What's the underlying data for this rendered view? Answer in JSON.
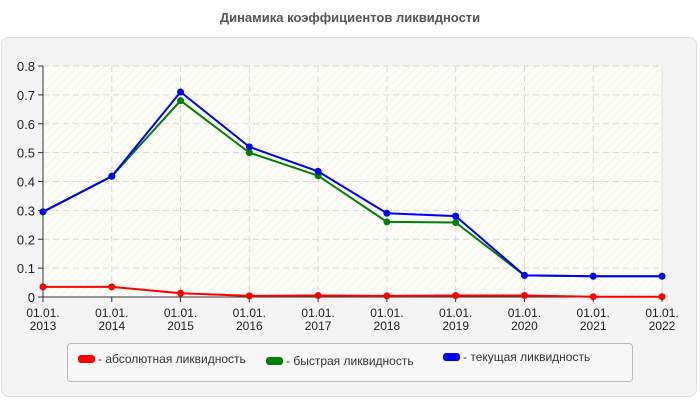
{
  "title": "Динамика коэффициентов ликвидности",
  "legend": {
    "items": [
      {
        "label": "- абсолютная ликвидность",
        "color": "#ff0000"
      },
      {
        "label": "- быстрая ликвидность",
        "color": "#008000"
      },
      {
        "label": "- текущая ликвидность",
        "color": "#0000ff"
      }
    ]
  },
  "chart_data": {
    "type": "line",
    "title": "Динамика коэффициентов ликвидности",
    "xlabel": "",
    "ylabel": "",
    "categories": [
      "01.01.\n2013",
      "01.01.\n2014",
      "01.01.\n2015",
      "01.01.\n2016",
      "01.01.\n2017",
      "01.01.\n2018",
      "01.01.\n2019",
      "01.01.\n2020",
      "01.01.\n2021",
      "01.01.\n2022"
    ],
    "x_labels_line1": [
      "01.01.",
      "01.01.",
      "01.01.",
      "01.01.",
      "01.01.",
      "01.01.",
      "01.01.",
      "01.01.",
      "01.01.",
      "01.01."
    ],
    "x_labels_line2": [
      "2013",
      "2014",
      "2015",
      "2016",
      "2017",
      "2018",
      "2019",
      "2020",
      "2021",
      "2022"
    ],
    "y_ticks": [
      "0",
      "0.1",
      "0.2",
      "0.3",
      "0.4",
      "0.5",
      "0.6",
      "0.7",
      "0.8"
    ],
    "ylim": [
      0,
      0.8
    ],
    "grid": true,
    "legend_position": "bottom",
    "series": [
      {
        "name": "абсолютная ликвидность",
        "color": "#ff0000",
        "values": [
          0.035,
          0.035,
          0.013,
          0.004,
          0.005,
          0.004,
          0.005,
          0.005,
          0.001,
          0.001
        ]
      },
      {
        "name": "быстрая ликвидность",
        "color": "#008000",
        "values": [
          0.295,
          0.418,
          0.68,
          0.5,
          0.42,
          0.26,
          0.258,
          0.075,
          0.072,
          0.072
        ]
      },
      {
        "name": "текущая ликвидность",
        "color": "#0000ff",
        "values": [
          0.295,
          0.418,
          0.71,
          0.52,
          0.435,
          0.29,
          0.28,
          0.075,
          0.072,
          0.072
        ]
      }
    ]
  }
}
